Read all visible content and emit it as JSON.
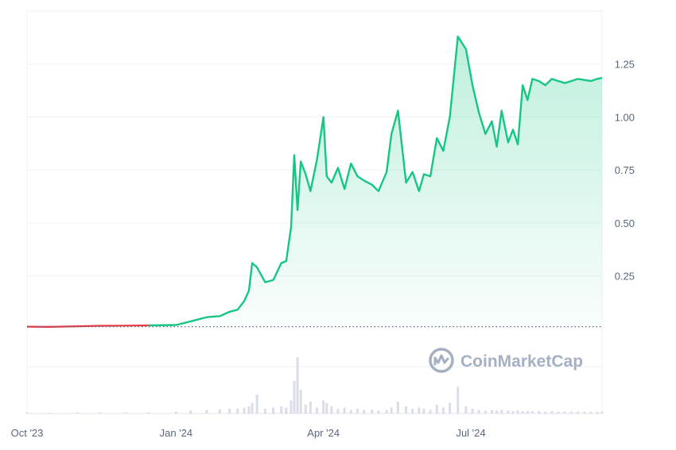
{
  "chart_data": {
    "type": "area",
    "x": [
      "2023-10-01",
      "2023-10-15",
      "2023-11-01",
      "2023-11-15",
      "2023-12-01",
      "2023-12-15",
      "2024-01-01",
      "2024-01-10",
      "2024-01-20",
      "2024-01-28",
      "2024-02-03",
      "2024-02-08",
      "2024-02-12",
      "2024-02-15",
      "2024-02-17",
      "2024-02-20",
      "2024-02-25",
      "2024-03-01",
      "2024-03-06",
      "2024-03-09",
      "2024-03-12",
      "2024-03-14",
      "2024-03-16",
      "2024-03-18",
      "2024-03-21",
      "2024-03-24",
      "2024-03-28",
      "2024-04-01",
      "2024-04-03",
      "2024-04-06",
      "2024-04-10",
      "2024-04-14",
      "2024-04-18",
      "2024-04-22",
      "2024-04-26",
      "2024-05-01",
      "2024-05-05",
      "2024-05-10",
      "2024-05-13",
      "2024-05-17",
      "2024-05-22",
      "2024-05-26",
      "2024-05-30",
      "2024-06-02",
      "2024-06-06",
      "2024-06-10",
      "2024-06-14",
      "2024-06-18",
      "2024-06-23",
      "2024-06-28",
      "2024-07-02",
      "2024-07-06",
      "2024-07-10",
      "2024-07-14",
      "2024-07-17",
      "2024-07-20",
      "2024-07-24",
      "2024-07-27",
      "2024-07-30",
      "2024-08-02",
      "2024-08-05",
      "2024-08-08",
      "2024-08-12",
      "2024-08-16",
      "2024-08-20",
      "2024-08-24",
      "2024-08-28",
      "2024-09-01",
      "2024-09-05",
      "2024-09-09",
      "2024-09-13",
      "2024-09-17",
      "2024-09-20"
    ],
    "price": [
      0.01,
      0.009,
      0.012,
      0.014,
      0.015,
      0.016,
      0.018,
      0.035,
      0.055,
      0.06,
      0.08,
      0.09,
      0.13,
      0.18,
      0.31,
      0.29,
      0.22,
      0.23,
      0.31,
      0.32,
      0.48,
      0.82,
      0.56,
      0.79,
      0.73,
      0.65,
      0.8,
      1.0,
      0.72,
      0.69,
      0.76,
      0.66,
      0.78,
      0.72,
      0.7,
      0.68,
      0.65,
      0.74,
      0.92,
      1.03,
      0.69,
      0.74,
      0.65,
      0.73,
      0.72,
      0.9,
      0.84,
      1.0,
      1.38,
      1.32,
      1.15,
      1.02,
      0.92,
      0.98,
      0.86,
      1.03,
      0.88,
      0.94,
      0.87,
      1.15,
      1.08,
      1.18,
      1.17,
      1.15,
      1.18,
      1.17,
      1.16,
      1.17,
      1.18,
      1.175,
      1.17,
      1.18,
      1.185
    ],
    "volume": [
      0.02,
      0.01,
      0.02,
      0.02,
      0.02,
      0.02,
      0.03,
      0.05,
      0.06,
      0.07,
      0.08,
      0.08,
      0.1,
      0.12,
      0.18,
      0.32,
      0.08,
      0.1,
      0.12,
      0.1,
      0.22,
      0.55,
      0.95,
      0.4,
      0.15,
      0.2,
      0.1,
      0.22,
      0.18,
      0.12,
      0.08,
      0.1,
      0.06,
      0.08,
      0.06,
      0.07,
      0.05,
      0.06,
      0.1,
      0.2,
      0.12,
      0.08,
      0.1,
      0.08,
      0.06,
      0.15,
      0.1,
      0.18,
      0.45,
      0.12,
      0.08,
      0.06,
      0.05,
      0.06,
      0.05,
      0.06,
      0.05,
      0.04,
      0.05,
      0.04,
      0.04,
      0.04,
      0.04,
      0.03,
      0.04,
      0.03,
      0.03,
      0.03,
      0.03,
      0.03,
      0.03,
      0.03,
      0.03
    ],
    "y_ticks": [
      "0.25",
      "0.50",
      "0.75",
      "1.00",
      "1.25"
    ],
    "y_tick_values": [
      0.25,
      0.5,
      0.75,
      1.0,
      1.25
    ],
    "x_ticks": [
      "Oct '23",
      "Jan '24",
      "Apr '24",
      "Jul '24"
    ],
    "x_tick_dates": [
      "2023-10-01",
      "2024-01-01",
      "2024-04-01",
      "2024-07-01"
    ],
    "ylim": [
      -0.4,
      1.5
    ],
    "xlim": [
      "2023-10-01",
      "2024-09-20"
    ],
    "grid": true,
    "y_axis_side": "right",
    "baseline_value": 0.01
  },
  "colors": {
    "line_up": "#16c784",
    "line_down": "#ea3943",
    "baseline": "#58667e",
    "grid": "#eff2f5",
    "volume": "#cfd6e4",
    "watermark": "#a6b0c3"
  },
  "watermark": {
    "text": "CoinMarketCap",
    "icon": "coinmarketcap-logo-icon"
  }
}
